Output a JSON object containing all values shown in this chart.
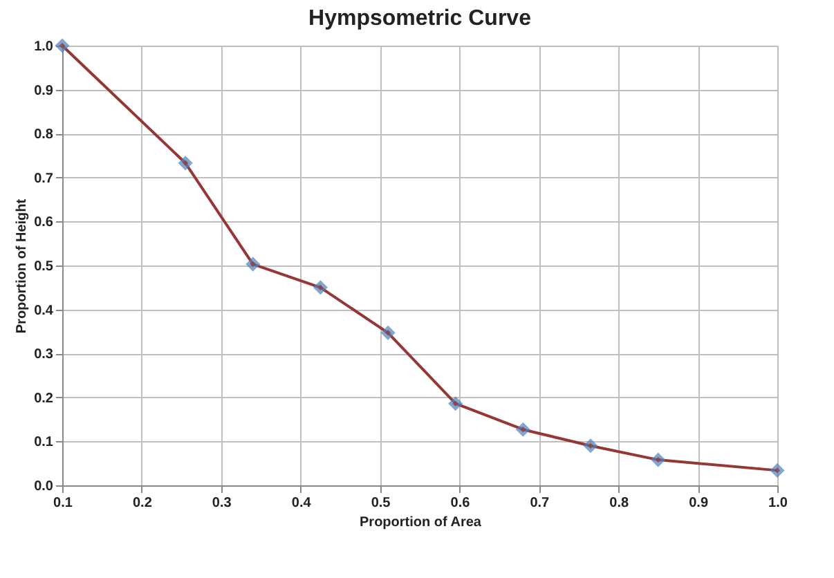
{
  "chart_data": {
    "type": "line",
    "title": "Hympsometric Curve",
    "xlabel": "Proportion of Area",
    "ylabel": "Proportion of Height",
    "x": [
      0.1,
      0.255,
      0.34,
      0.425,
      0.51,
      0.595,
      0.68,
      0.765,
      0.85,
      1.0
    ],
    "series": [
      {
        "color": "#953735",
        "values": [
          1.0,
          0.733,
          0.503,
          0.45,
          0.347,
          0.186,
          0.127,
          0.09,
          0.058,
          0.034
        ]
      }
    ],
    "xlim": [
      0.1,
      1.0
    ],
    "xticks": [
      {
        "value": 0.1,
        "label": "0.1"
      },
      {
        "value": 0.2,
        "label": "0.2"
      },
      {
        "value": 0.3,
        "label": "0.3"
      },
      {
        "value": 0.4,
        "label": "0.4"
      },
      {
        "value": 0.5,
        "label": "0.5"
      },
      {
        "value": 0.6,
        "label": "0.6"
      },
      {
        "value": 0.7,
        "label": "0.7"
      },
      {
        "value": 0.8,
        "label": "0.8"
      },
      {
        "value": 0.9,
        "label": "0.9"
      },
      {
        "value": 1.0,
        "label": "1.0"
      }
    ],
    "ylim": [
      0.0,
      1.0
    ],
    "yticks": [
      {
        "value": 0.0,
        "label": "0.0"
      },
      {
        "value": 0.1,
        "label": "0.1"
      },
      {
        "value": 0.2,
        "label": "0.2"
      },
      {
        "value": 0.3,
        "label": "0.3"
      },
      {
        "value": 0.4,
        "label": "0.4"
      },
      {
        "value": 0.5,
        "label": "0.5"
      },
      {
        "value": 0.6,
        "label": "0.6"
      },
      {
        "value": 0.7,
        "label": "0.7"
      },
      {
        "value": 0.8,
        "label": "0.8"
      },
      {
        "value": 0.9,
        "label": "0.9"
      },
      {
        "value": 1.0,
        "label": "1.0"
      }
    ],
    "grid": true,
    "marker": "diamond",
    "line_style": "solid"
  }
}
